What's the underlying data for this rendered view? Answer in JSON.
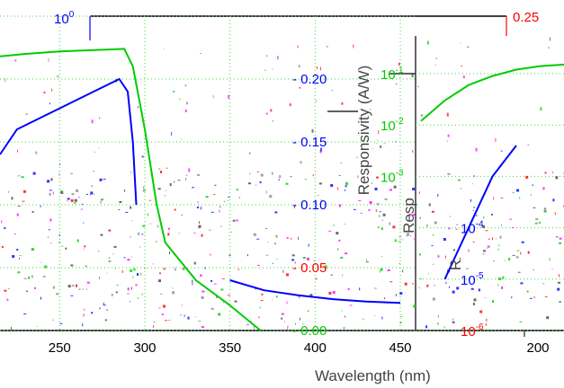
{
  "chart_data": [
    {
      "type": "line",
      "panel": "main",
      "xlabel": "Wavelength (nm)",
      "ylabel": "Responsivity (A/W)",
      "x_ticks": [
        "250",
        "300",
        "350",
        "400",
        "450"
      ],
      "xlim": [
        215,
        450
      ],
      "y_left": {
        "scale": "log",
        "ticks": [
          "10^0"
        ]
      },
      "y_right": {
        "scale": "linear",
        "range": [
          0,
          0.25
        ],
        "ticks": [
          "0.00",
          "0.05",
          "0.10",
          "0.15",
          "0.20",
          "0.25"
        ],
        "color": "#ff0000"
      },
      "series": [
        {
          "color": "#0000ff",
          "axis": "right",
          "x": [
            215,
            225,
            240,
            255,
            270,
            285,
            290,
            293,
            295
          ],
          "y": [
            0.14,
            0.16,
            0.17,
            0.18,
            0.19,
            0.2,
            0.19,
            0.15,
            0.1
          ]
        },
        {
          "color": "#00cc00",
          "axis": "right",
          "x": [
            215,
            230,
            250,
            270,
            288,
            293,
            300,
            307,
            312,
            330,
            350,
            368
          ],
          "y": [
            0.218,
            0.22,
            0.222,
            0.223,
            0.224,
            0.21,
            0.16,
            0.1,
            0.07,
            0.04,
            0.02,
            0.0
          ]
        },
        {
          "color": "#0000ff",
          "axis": "right",
          "x": [
            350,
            370,
            390,
            410,
            430,
            450
          ],
          "y": [
            0.04,
            0.032,
            0.028,
            0.025,
            0.023,
            0.022
          ]
        }
      ]
    },
    {
      "type": "line",
      "panel": "inset",
      "x_ticks": [
        "200"
      ],
      "y_scale": "log",
      "y_ticks": [
        "10^-1",
        "10^-2",
        "10^-3",
        "10^-4",
        "10^-5",
        "10^-6"
      ],
      "series": [
        {
          "color": "#00cc00",
          "x": [
            190,
            195,
            200,
            205,
            210,
            215,
            220
          ],
          "y": [
            0.012,
            0.03,
            0.06,
            0.09,
            0.12,
            0.14,
            0.15
          ]
        },
        {
          "color": "#0000ff",
          "x": [
            195,
            200,
            205,
            210
          ],
          "y": [
            1e-05,
            0.0001,
            0.001,
            0.004
          ]
        }
      ]
    }
  ],
  "colors": {
    "blue": "#0000ff",
    "green": "#00cc00",
    "red": "#ff0000",
    "grid": "#33dd33"
  },
  "fragments": {
    "resp_left": "Resp",
    "resp_letter": "R"
  }
}
